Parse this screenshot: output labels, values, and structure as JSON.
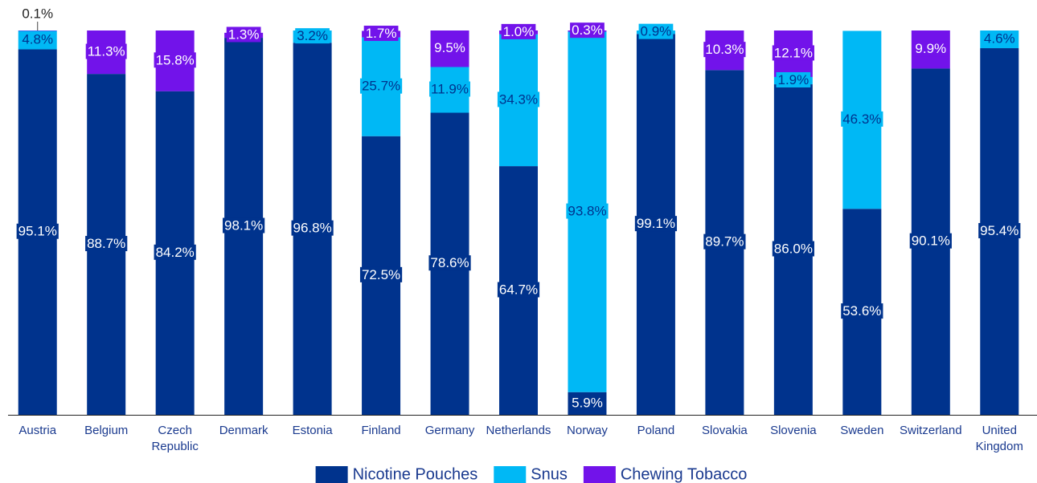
{
  "chart_data": {
    "type": "stacked_bar",
    "categories": [
      "Austria",
      "Belgium",
      "Czech Republic",
      "Denmark",
      "Estonia",
      "Finland",
      "Germany",
      "Netherlands",
      "Norway",
      "Poland",
      "Slovakia",
      "Slovenia",
      "Sweden",
      "Switzerland",
      "United Kingdom"
    ],
    "series": [
      {
        "name": "Nicotine Pouches",
        "color": "#00338d",
        "values": [
          95.1,
          88.7,
          84.2,
          98.1,
          96.8,
          72.5,
          78.6,
          64.7,
          5.9,
          99.1,
          89.7,
          86.0,
          53.6,
          90.1,
          95.4
        ],
        "value_labels": [
          "95.1%",
          "88.7%",
          "84.2%",
          "98.1%",
          "96.8%",
          "72.5%",
          "78.6%",
          "64.7%",
          "5.9%",
          "99.1%",
          "89.7%",
          "86.0%",
          "53.6%",
          "90.1%",
          "95.4%"
        ]
      },
      {
        "name": "Snus",
        "color": "#00b8f5",
        "values": [
          4.8,
          null,
          null,
          null,
          3.2,
          25.7,
          11.9,
          34.3,
          93.8,
          0.9,
          null,
          1.9,
          46.3,
          null,
          4.6
        ],
        "value_labels": [
          "4.8%",
          null,
          null,
          null,
          "3.2%",
          "25.7%",
          "11.9%",
          "34.3%",
          "93.8%",
          "0.9%",
          null,
          "1.9%",
          "46.3%",
          null,
          "4.6%"
        ]
      },
      {
        "name": "Chewing Tobacco",
        "color": "#7213ea",
        "values": [
          0.1,
          11.3,
          15.8,
          1.3,
          null,
          1.7,
          9.5,
          1.0,
          0.3,
          null,
          10.3,
          12.1,
          null,
          9.9,
          null
        ],
        "value_labels": [
          "0.1%",
          "11.3%",
          "15.8%",
          "1.3%",
          null,
          "1.7%",
          "9.5%",
          "1.0%",
          "0.3%",
          null,
          "10.3%",
          "12.1%",
          null,
          "9.9%",
          null
        ]
      }
    ],
    "ylim": [
      0,
      100
    ],
    "legend": "bottom"
  }
}
